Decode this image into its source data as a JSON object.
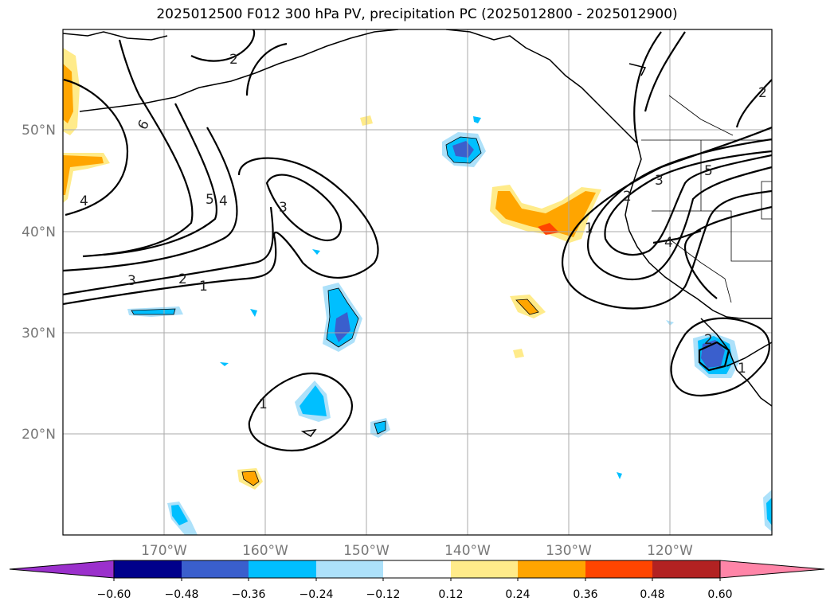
{
  "title": "2025012500 F012 300 hPa PV, precipitation PC (2025012800 - 2025012900)",
  "map": {
    "lat_labels": [
      "50°N",
      "40°N",
      "30°N",
      "20°N"
    ],
    "lon_labels": [
      "170°W",
      "160°W",
      "150°W",
      "140°W",
      "130°W",
      "120°W"
    ],
    "contour_labels": [
      "2",
      "6",
      "5",
      "4",
      "3",
      "4",
      "3",
      "2",
      "1",
      "1",
      "1",
      "2",
      "3",
      "5",
      "4",
      "2",
      "1",
      "2"
    ]
  },
  "colorbar": {
    "ticks": [
      "−0.60",
      "−0.48",
      "−0.36",
      "−0.24",
      "−0.12",
      "0.12",
      "0.24",
      "0.36",
      "0.48",
      "0.60"
    ],
    "colors": {
      "under": "#9b30cc",
      "c1": "#00008b",
      "c2": "#3a5fcd",
      "c3": "#00bfff",
      "c4": "#ade1fa",
      "c5": "#ffffff",
      "c6": "#ffeb8a",
      "c7": "#ffa500",
      "c8": "#ff4500",
      "c9": "#b22222",
      "over": "#ff85a8"
    }
  }
}
